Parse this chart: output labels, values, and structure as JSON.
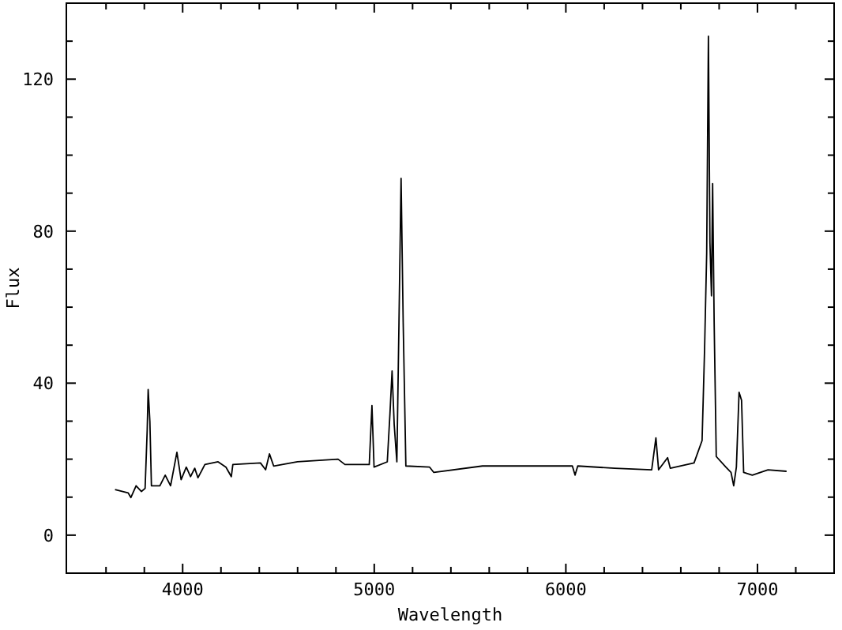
{
  "chart_data": {
    "type": "line",
    "xlabel": "Wavelength",
    "ylabel": "Flux",
    "xlim": [
      3393,
      7400
    ],
    "ylim": [
      -10,
      140
    ],
    "xticks": [
      {
        "value": 3600,
        "label": null
      },
      {
        "value": 3800,
        "label": null
      },
      4000,
      {
        "value": 4200,
        "label": null
      },
      {
        "value": 4400,
        "label": null
      },
      {
        "value": 4600,
        "label": null
      },
      {
        "value": 4800,
        "label": null
      },
      5000,
      {
        "value": 5200,
        "label": null
      },
      {
        "value": 5400,
        "label": null
      },
      {
        "value": 5600,
        "label": null
      },
      {
        "value": 5800,
        "label": null
      },
      6000,
      {
        "value": 6200,
        "label": null
      },
      {
        "value": 6400,
        "label": null
      },
      {
        "value": 6600,
        "label": null
      },
      {
        "value": 6800,
        "label": null
      },
      7000,
      {
        "value": 7200,
        "label": null
      }
    ],
    "yticks": [
      {
        "value": -10,
        "label": null
      },
      0,
      {
        "value": 10,
        "label": null
      },
      {
        "value": 20,
        "label": null
      },
      {
        "value": 30,
        "label": null
      },
      40,
      {
        "value": 50,
        "label": null
      },
      {
        "value": 60,
        "label": null
      },
      {
        "value": 70,
        "label": null
      },
      80,
      {
        "value": 90,
        "label": null
      },
      {
        "value": 100,
        "label": null
      },
      {
        "value": 110,
        "label": null
      },
      120,
      {
        "value": 130,
        "label": null
      }
    ],
    "grid": false,
    "marker": "none",
    "line_style": "solid",
    "series": [
      {
        "color": "#000000",
        "x": [
          3647,
          3716,
          3730,
          3757,
          3785,
          3804,
          3815,
          3820,
          3829,
          3837,
          3881,
          3909,
          3937,
          3970,
          3992,
          4019,
          4041,
          4063,
          4080,
          4116,
          4185,
          4226,
          4254,
          4262,
          4406,
          4433,
          4453,
          4475,
          4599,
          4811,
          4847,
          4974,
          4988,
          4999,
          5068,
          5082,
          5093,
          5104,
          5118,
          5129,
          5140,
          5151,
          5165,
          5289,
          5311,
          5565,
          5841,
          6034,
          6048,
          6062,
          6255,
          6448,
          6470,
          6484,
          6531,
          6545,
          6669,
          6711,
          6724,
          6735,
          6744,
          6752,
          6760,
          6766,
          6774,
          6785,
          6835,
          6862,
          6876,
          6890,
          6904,
          6917,
          6928,
          6973,
          7055,
          7152
        ],
        "values": [
          12.0,
          11.1,
          9.9,
          13,
          11.5,
          12.3,
          27.7,
          38.3,
          29.9,
          13,
          13,
          15.8,
          13,
          21.8,
          14.6,
          17.9,
          15.4,
          17.6,
          15.1,
          18.6,
          19.3,
          17.9,
          15.4,
          18.6,
          19,
          17.2,
          21.4,
          18.2,
          19.3,
          20,
          18.6,
          18.6,
          34.1,
          17.9,
          19.3,
          32,
          43.2,
          29.2,
          19.3,
          55.9,
          93.9,
          55.9,
          18.2,
          17.9,
          16.5,
          18.2,
          18.2,
          18.2,
          15.8,
          18.2,
          17.6,
          17.2,
          25.6,
          17.2,
          20.4,
          17.6,
          19,
          24.9,
          48.9,
          74.2,
          131.3,
          77,
          63,
          92.5,
          55.9,
          20.7,
          17.9,
          16.5,
          13,
          17.9,
          37.6,
          35.5,
          16.5,
          15.8,
          17.2,
          16.8
        ]
      }
    ]
  }
}
